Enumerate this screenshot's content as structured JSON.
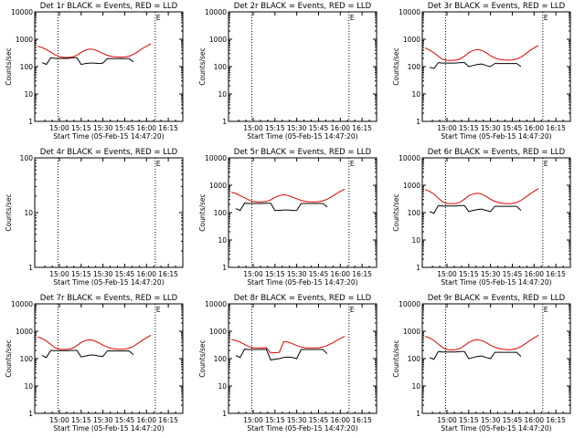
{
  "colors": {
    "events": "#000000",
    "lld": "#e00000",
    "frame": "#000000",
    "background": "#ffffff"
  },
  "chart_data": {
    "type": "line",
    "y_scale": "log",
    "ylabel": "Counts/sec",
    "xlabel": "Start Time (05-Feb-15 14:47:20)",
    "x_ticks": [
      "15:00",
      "15:15",
      "15:30",
      "15:45",
      "16:00",
      "16:15"
    ],
    "x_tick_minutes": [
      15.0,
      30.0,
      45.0,
      60.0,
      75.0,
      90.0
    ],
    "x_range_minutes": [
      -2.0,
      100.0
    ],
    "annotation": "E",
    "legend": "none",
    "grid": false,
    "dotted_vertical_lines_at": [
      "15:01",
      "16:08"
    ],
    "x_grid_minutes": [
      0,
      3,
      6,
      9,
      12,
      15,
      18,
      21,
      24,
      27,
      30,
      33,
      36,
      39,
      42,
      45,
      48,
      51,
      54,
      57,
      60,
      63,
      66,
      69,
      72,
      75,
      78,
      81,
      84,
      87,
      90,
      93,
      96,
      99
    ],
    "panels": [
      {
        "title": "Det 1r BLACK = Events, RED = LLD",
        "y_ticks": [
          "1",
          "10",
          "100",
          "1000",
          "10000"
        ],
        "y_range": [
          1,
          10000
        ],
        "series": [
          {
            "name": "RED = LLD",
            "values": [
              550,
              500,
              420,
              340,
              270,
              230,
              215,
              215,
              225,
              260,
              330,
              400,
              440,
              420,
              360,
              300,
              260,
              235,
              225,
              220,
              225,
              240,
              280,
              350,
              450,
              560,
              680
            ]
          },
          {
            "name": "BLACK = Events",
            "values": [
              null,
              140,
              120,
              210,
              200,
              200,
              200,
              200,
              210,
              210,
              120,
              130,
              135,
              135,
              130,
              135,
              195,
              195,
              195,
              195,
              195,
              195,
              150,
              null,
              null,
              null,
              null
            ]
          }
        ]
      },
      {
        "title": "Det 2r BLACK = Events, RED = LLD",
        "y_ticks": [
          "1",
          "10",
          "100",
          "1000",
          "10000"
        ],
        "y_range": [
          1,
          10000
        ],
        "series": [
          {
            "name": "RED = LLD",
            "values": []
          },
          {
            "name": "BLACK = Events",
            "values": []
          }
        ]
      },
      {
        "title": "Det 3r BLACK = Events, RED = LLD",
        "y_ticks": [
          "1",
          "10",
          "100",
          "1000",
          "10000"
        ],
        "y_range": [
          1,
          10000
        ],
        "series": [
          {
            "name": "RED = LLD",
            "values": [
              480,
              400,
              320,
              240,
              185,
              170,
              168,
              172,
              190,
              240,
              320,
              390,
              420,
              390,
              320,
              250,
              205,
              185,
              175,
              172,
              175,
              190,
              220,
              290,
              380,
              480,
              600
            ]
          },
          {
            "name": "BLACK = Events",
            "values": [
              null,
              95,
              85,
              140,
              135,
              135,
              135,
              135,
              140,
              140,
              100,
              110,
              120,
              125,
              110,
              100,
              130,
              130,
              130,
              130,
              130,
              130,
              100,
              null,
              null,
              null,
              null
            ]
          }
        ]
      },
      {
        "title": "Det 4r BLACK = Events, RED = LLD",
        "y_ticks": [
          "1",
          "10",
          "100"
        ],
        "y_range": [
          1,
          100
        ],
        "series": [
          {
            "name": "RED = LLD",
            "values": []
          },
          {
            "name": "BLACK = Events",
            "values": []
          }
        ]
      },
      {
        "title": "Det 5r BLACK = Events, RED = LLD",
        "y_ticks": [
          "1",
          "10",
          "100",
          "1000",
          "10000"
        ],
        "y_range": [
          1,
          10000
        ],
        "series": [
          {
            "name": "RED = LLD",
            "values": [
              560,
              500,
              420,
              350,
              290,
              255,
              245,
              245,
              255,
              290,
              360,
              420,
              450,
              420,
              370,
              320,
              280,
              258,
              250,
              248,
              252,
              270,
              310,
              380,
              480,
              600,
              720
            ]
          },
          {
            "name": "BLACK = Events",
            "values": [
              null,
              140,
              120,
              220,
              215,
              215,
              215,
              215,
              220,
              220,
              120,
              120,
              125,
              125,
              120,
              120,
              215,
              215,
              215,
              215,
              215,
              215,
              160,
              null,
              null,
              null,
              null
            ]
          }
        ]
      },
      {
        "title": "Det 6r BLACK = Events, RED = LLD",
        "y_ticks": [
          "1",
          "10",
          "100",
          "1000",
          "10000"
        ],
        "y_range": [
          1,
          10000
        ],
        "series": [
          {
            "name": "RED = LLD",
            "values": [
              700,
              600,
              480,
              340,
              250,
              215,
              210,
              215,
              240,
              310,
              410,
              480,
              510,
              470,
              390,
              310,
              260,
              230,
              215,
              210,
              215,
              235,
              280,
              360,
              470,
              600,
              760
            ]
          },
          {
            "name": "BLACK = Events",
            "values": [
              null,
              110,
              95,
              180,
              175,
              175,
              175,
              175,
              180,
              180,
              110,
              120,
              130,
              135,
              120,
              110,
              170,
              170,
              170,
              170,
              170,
              170,
              120,
              null,
              null,
              null,
              null
            ]
          }
        ]
      },
      {
        "title": "Det 7r BLACK = Events, RED = LLD",
        "y_ticks": [
          "1",
          "10",
          "100",
          "1000",
          "10000"
        ],
        "y_range": [
          1,
          10000
        ],
        "series": [
          {
            "name": "RED = LLD",
            "values": [
              620,
              540,
              440,
              330,
              250,
              220,
              215,
              220,
              240,
              300,
              390,
              460,
              490,
              450,
              380,
              310,
              265,
              235,
              222,
              218,
              222,
              240,
              280,
              360,
              460,
              580,
              720
            ]
          },
          {
            "name": "BLACK = Events",
            "values": [
              null,
              130,
              110,
              200,
              195,
              195,
              195,
              195,
              200,
              200,
              115,
              125,
              135,
              135,
              125,
              120,
              190,
              190,
              190,
              190,
              190,
              190,
              140,
              null,
              null,
              null,
              null
            ]
          }
        ]
      },
      {
        "title": "Det 8r BLACK = Events, RED = LLD",
        "y_ticks": [
          "1",
          "10",
          "100",
          "1000",
          "10000"
        ],
        "y_range": [
          1,
          10000
        ],
        "series": [
          {
            "name": "RED = LLD",
            "values": [
              500,
              460,
              400,
              330,
              275,
              250,
              245,
              248,
              255,
              160,
              165,
              170,
              420,
              400,
              350,
              300,
              265,
              250,
              245,
              245,
              250,
              265,
              300,
              360,
              440,
              540,
              660
            ]
          },
          {
            "name": "BLACK = Events",
            "values": [
              null,
              130,
              110,
              220,
              215,
              215,
              215,
              215,
              220,
              90,
              95,
              100,
              110,
              115,
              110,
              100,
              215,
              215,
              215,
              215,
              215,
              215,
              150,
              null,
              null,
              null,
              null
            ]
          }
        ]
      },
      {
        "title": "Det 9r BLACK = Events, RED = LLD",
        "y_ticks": [
          "1",
          "10",
          "100",
          "1000",
          "10000"
        ],
        "y_range": [
          1,
          10000
        ],
        "series": [
          {
            "name": "RED = LLD",
            "values": [
              650,
              570,
              460,
              340,
              255,
              215,
              208,
              212,
              235,
              300,
              390,
              460,
              490,
              455,
              385,
              310,
              262,
              232,
              218,
              212,
              216,
              235,
              275,
              350,
              450,
              570,
              720
            ]
          },
          {
            "name": "BLACK = Events",
            "values": [
              null,
              110,
              95,
              180,
              175,
              175,
              175,
              175,
              180,
              180,
              100,
              110,
              120,
              125,
              110,
              100,
              170,
              170,
              170,
              170,
              170,
              170,
              120,
              null,
              null,
              null,
              null
            ]
          }
        ]
      }
    ]
  }
}
